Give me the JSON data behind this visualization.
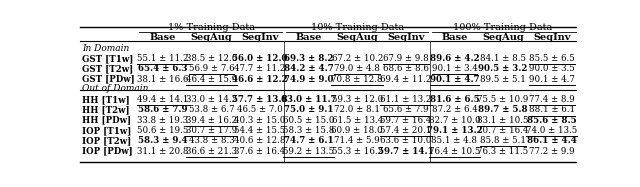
{
  "title_group1": "1% Training Data",
  "title_group2": "10% Training Data",
  "title_group3": "100% Training Data",
  "col_headers": [
    "Base",
    "SeqAug",
    "SeqInv",
    "Base",
    "SeqAug",
    "SeqInv",
    "Base",
    "SeqAug",
    "SeqInv"
  ],
  "section1": "In Domain",
  "section2": "Out of Domain",
  "rows": [
    {
      "label": "GST [T1w]",
      "vals": [
        "55.1 ± 11.2",
        "38.5 ± 12.0",
        "56.0 ± 12.0",
        "69.3 ± 8.2",
        "67.2 ± 10.2",
        "67.9 ± 9.8",
        "89.6 ± 4.2",
        "84.1 ± 8.5",
        "85.5 ± 6.5"
      ],
      "bold": [
        false,
        false,
        true,
        true,
        false,
        false,
        true,
        false,
        false
      ],
      "underline": [
        true,
        false,
        false,
        false,
        false,
        true,
        false,
        false,
        true
      ]
    },
    {
      "label": "GST [T2w]",
      "vals": [
        "65.4 ± 6.3",
        "56.9 ± 7.6",
        "47.7 ± 11.2",
        "84.2 ± 4.7",
        "79.0 ± 4.8",
        "68.6 ± 8.6",
        "90.1 ± 3.4",
        "90.5 ± 3.2",
        "90.0 ± 3.5"
      ],
      "bold": [
        true,
        false,
        false,
        true,
        false,
        false,
        false,
        true,
        false
      ],
      "underline": [
        false,
        true,
        false,
        false,
        true,
        false,
        true,
        false,
        false
      ]
    },
    {
      "label": "GST [PDw]",
      "vals": [
        "38.1 ± 16.6",
        "46.4 ± 15.9",
        "46.6 ± 12.2",
        "74.9 ± 9.0",
        "70.8 ± 12.8",
        "69.4 ± 11.2",
        "90.1 ± 4.7",
        "89.5 ± 5.1",
        "90.1 ± 4.7"
      ],
      "bold": [
        false,
        false,
        true,
        true,
        false,
        false,
        true,
        false,
        false
      ],
      "underline": [
        false,
        true,
        false,
        false,
        true,
        false,
        true,
        false,
        true
      ]
    },
    {
      "label": "HH [T1w]",
      "vals": [
        "49.4 ± 14.1",
        "33.0 ± 14.2",
        "57.7 ± 13.8",
        "63.0 ± 11.7",
        "59.3 ± 12.0",
        "61.1 ± 13.2",
        "81.6 ± 6.5",
        "75.5 ± 10.9",
        "77.4 ± 8.9"
      ],
      "bold": [
        false,
        false,
        true,
        true,
        false,
        false,
        true,
        false,
        false
      ],
      "underline": [
        true,
        false,
        false,
        false,
        false,
        true,
        false,
        false,
        true
      ]
    },
    {
      "label": "HH [T2w]",
      "vals": [
        "58.6 ± 7.9",
        "53.8 ± 6.7",
        "46.5 ± 7.0",
        "75.0 ± 9.1",
        "72.0 ± 8.1",
        "65.6 ± 7.9",
        "87.2 ± 6.4",
        "89.7 ± 5.8",
        "88.1 ± 6.1"
      ],
      "bold": [
        true,
        false,
        false,
        true,
        false,
        false,
        false,
        true,
        false
      ],
      "underline": [
        false,
        false,
        false,
        false,
        false,
        true,
        false,
        false,
        true
      ]
    },
    {
      "label": "HH [PDw]",
      "vals": [
        "33.8 ± 19.3",
        "39.4 ± 16.2",
        "40.3 ± 15.0",
        "60.5 ± 15.0",
        "61.5 ± 13.4",
        "59.7 ± 16.4",
        "82.7 ± 10.0",
        "83.1 ± 10.5",
        "85.6 ± 8.5"
      ],
      "bold": [
        false,
        false,
        false,
        false,
        false,
        false,
        false,
        false,
        true
      ],
      "underline": [
        false,
        true,
        false,
        false,
        false,
        false,
        false,
        true,
        false
      ]
    },
    {
      "label": "IOP [T1w]",
      "vals": [
        "50.6 ± 19.5",
        "30.7 ± 17.9",
        "54.4 ± 15.5",
        "58.3 ± 15.8",
        "60.9 ± 18.0",
        "57.4 ± 20.1",
        "79.1 ± 13.2",
        "70.7 ± 16.4",
        "74.0 ± 13.5"
      ],
      "bold": [
        false,
        false,
        false,
        false,
        false,
        false,
        true,
        false,
        false
      ],
      "underline": [
        false,
        true,
        false,
        false,
        false,
        true,
        false,
        false,
        true
      ]
    },
    {
      "label": "IOP [T2w]",
      "vals": [
        "58.3 ± 9.4",
        "43.8 ± 8.3",
        "40.6 ± 12.8",
        "74.7 ± 6.1",
        "71.4 ± 5.9",
        "63.6 ± 10.0",
        "85.1 ± 4.8",
        "85.8 ± 5.1",
        "86.1 ± 4.4"
      ],
      "bold": [
        true,
        false,
        false,
        true,
        false,
        false,
        false,
        false,
        true
      ],
      "underline": [
        false,
        false,
        false,
        false,
        false,
        false,
        false,
        true,
        false
      ]
    },
    {
      "label": "IOP [PDw]",
      "vals": [
        "31.1 ± 20.8",
        "36.6 ± 21.3",
        "37.6 ± 16.4",
        "59.2 ± 13.5",
        "55.3 ± 16.2",
        "59.7 ± 14.1",
        "76.4 ± 10.5",
        "76.3 ± 11.5",
        "77.2 ± 9.9"
      ],
      "bold": [
        false,
        false,
        false,
        false,
        false,
        true,
        false,
        false,
        false
      ],
      "underline": [
        false,
        true,
        false,
        true,
        false,
        false,
        true,
        false,
        false
      ]
    }
  ],
  "bg_color": "#ffffff",
  "font_size": 6.2,
  "header_font_size": 7.0,
  "label_font_size": 6.5
}
